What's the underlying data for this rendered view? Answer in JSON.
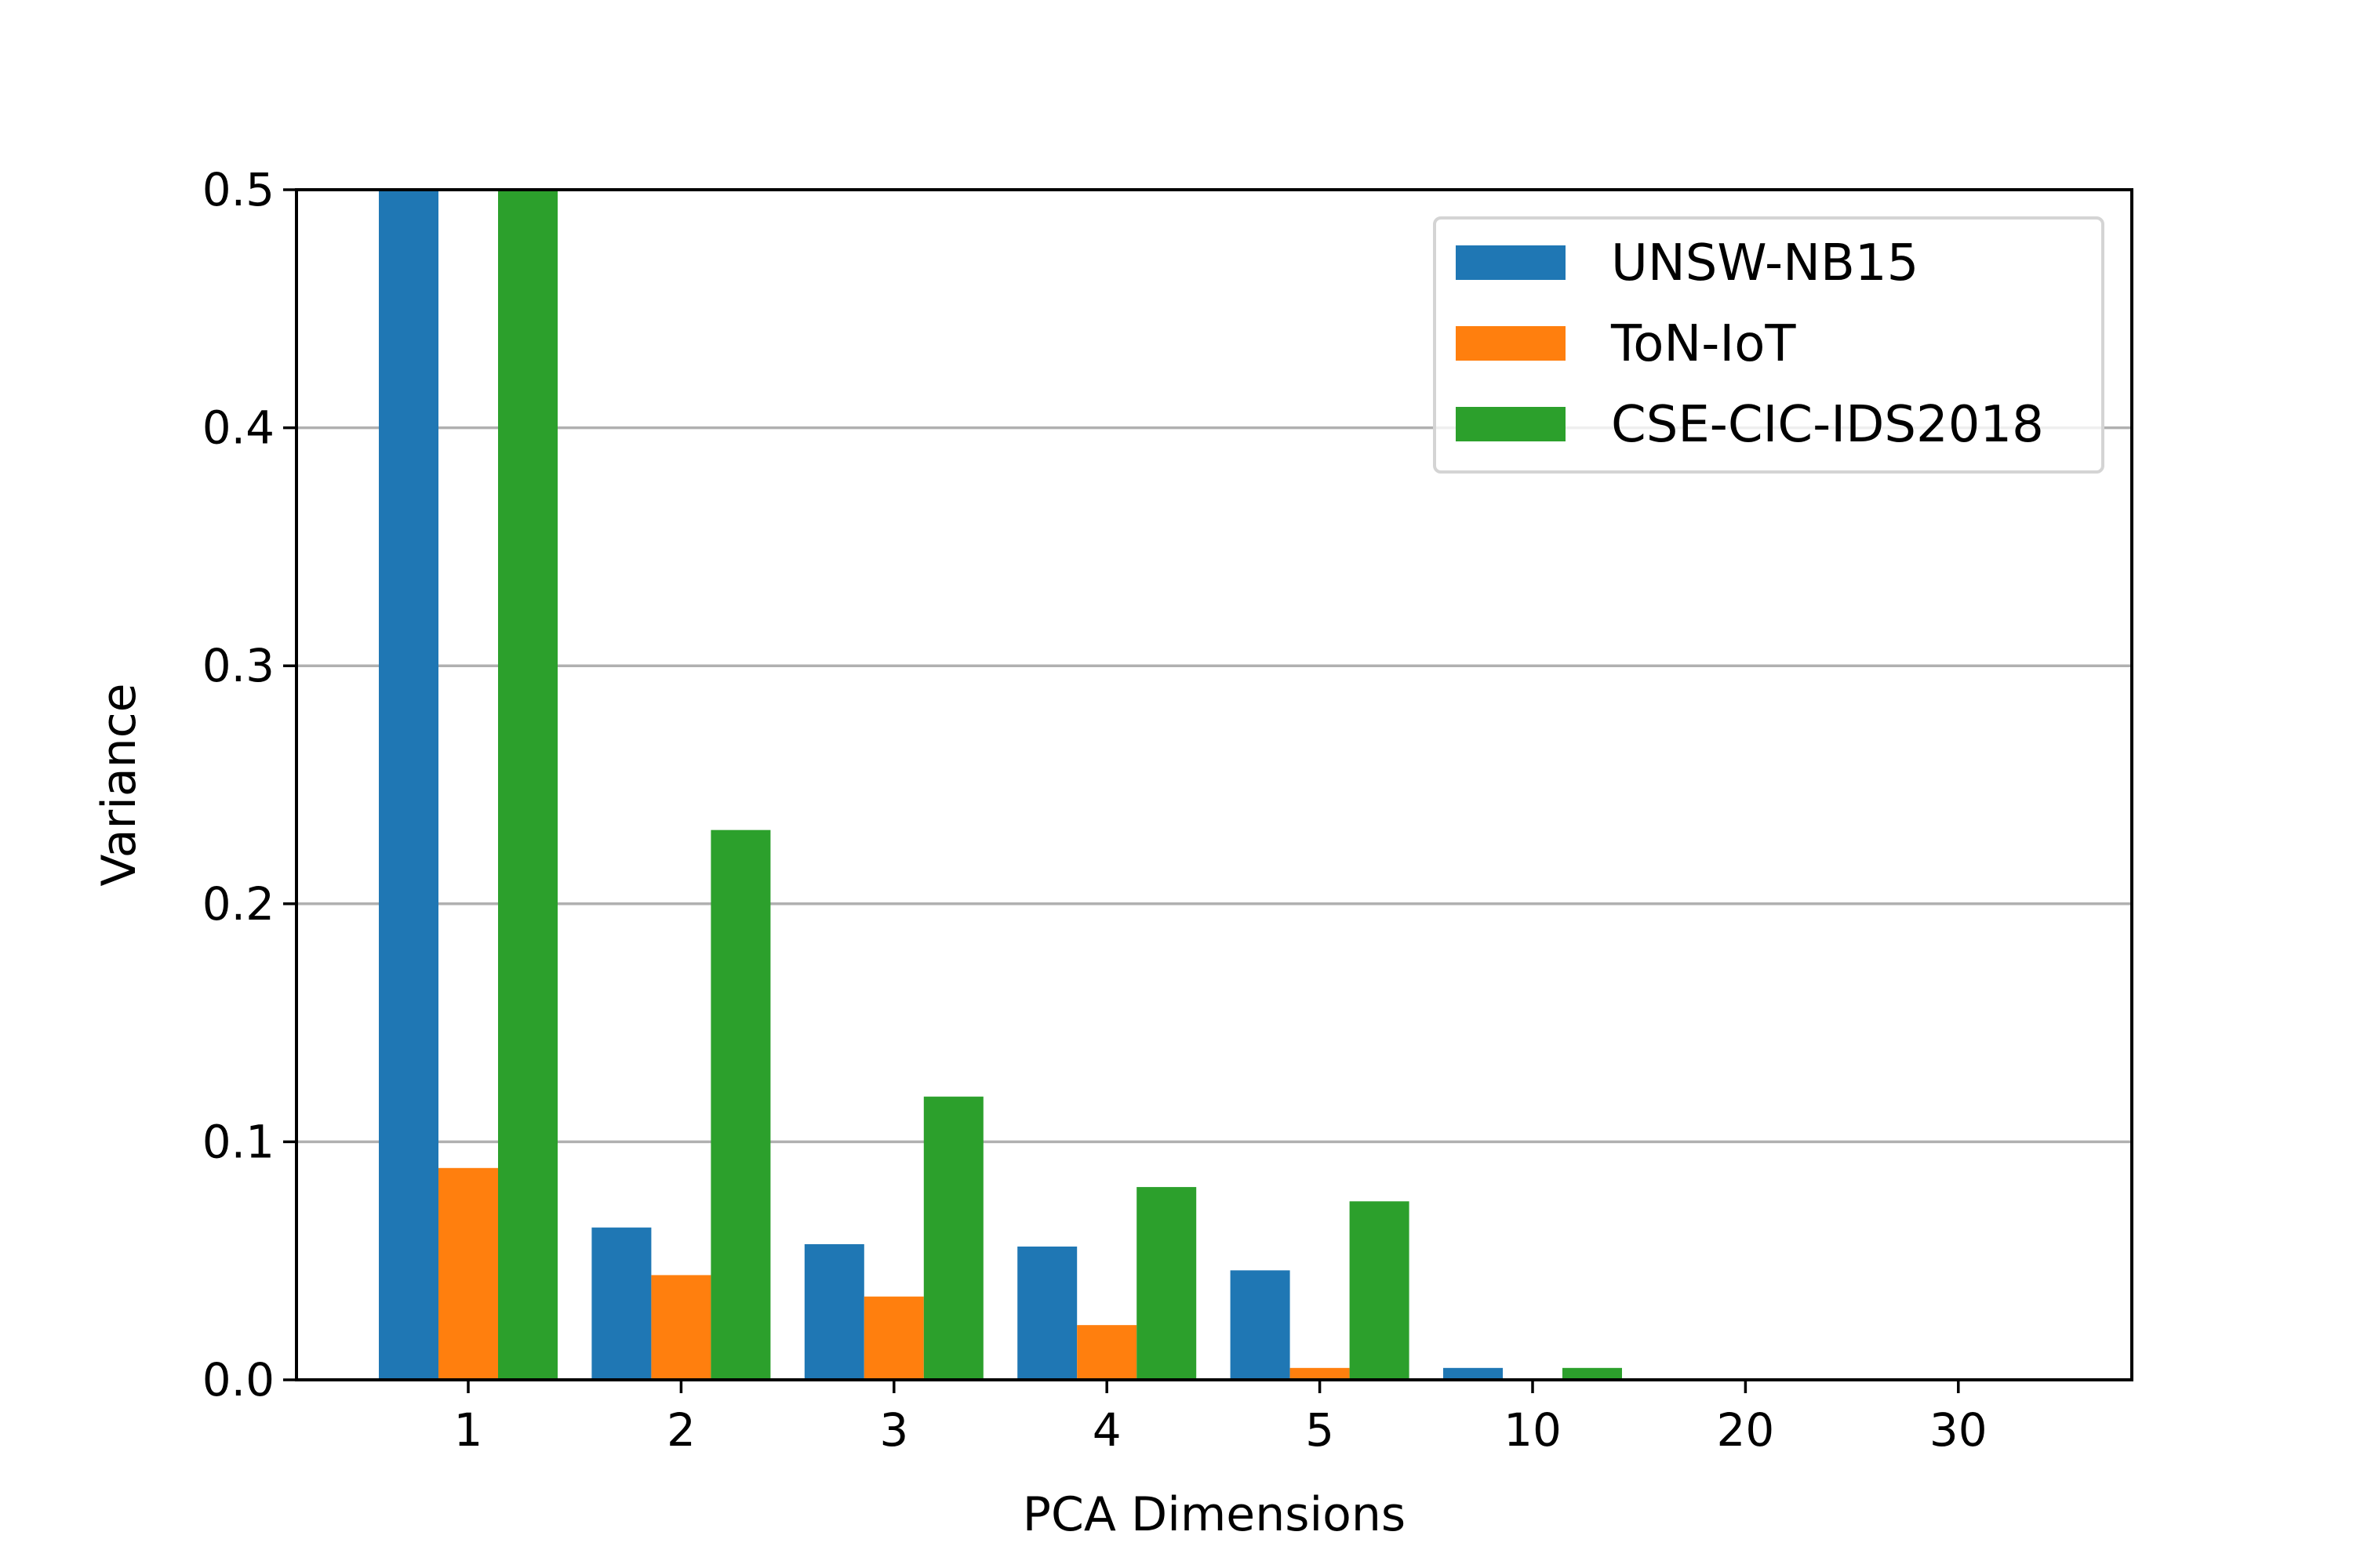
{
  "chart_data": {
    "type": "bar",
    "title": "",
    "xlabel": "PCA Dimensions",
    "ylabel": "Variance",
    "ylim": [
      0,
      0.5
    ],
    "yticks": [
      "0.0",
      "0.1",
      "0.2",
      "0.3",
      "0.4",
      "0.5"
    ],
    "categories": [
      "1",
      "2",
      "3",
      "4",
      "5",
      "10",
      "20",
      "30"
    ],
    "series": [
      {
        "name": "UNSW-NB15",
        "color": "#1f77b4",
        "values": [
          0.5,
          0.064,
          0.057,
          0.056,
          0.046,
          0.005,
          0.0,
          0.0
        ]
      },
      {
        "name": "ToN-IoT",
        "color": "#ff7f0e",
        "values": [
          0.089,
          0.044,
          0.035,
          0.023,
          0.005,
          0.0,
          0.0,
          0.0
        ]
      },
      {
        "name": "CSE-CIC-IDS2018",
        "color": "#2ca02c",
        "values": [
          0.5,
          0.231,
          0.119,
          0.081,
          0.075,
          0.005,
          0.0,
          0.0
        ]
      }
    ],
    "grid": "horizontal",
    "legend_position": "top-right"
  }
}
